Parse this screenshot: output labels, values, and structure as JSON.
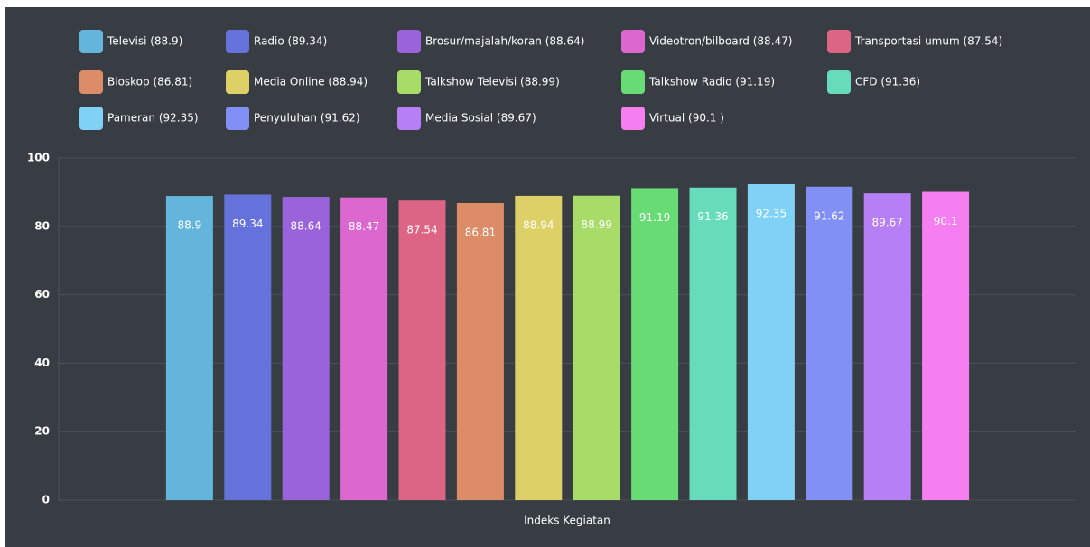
{
  "chart_data": {
    "type": "bar",
    "categories": [
      "Indeks Kegiatan"
    ],
    "series": [
      {
        "name": "Televisi (88.9)",
        "color": "#63b5dc",
        "values": [
          88.9
        ]
      },
      {
        "name": "Radio (89.34)",
        "color": "#6672dc",
        "values": [
          89.34
        ]
      },
      {
        "name": "Brosur/majalah/koran (88.64)",
        "color": "#9a63dc",
        "values": [
          88.64
        ]
      },
      {
        "name": "Videotron/bilboard (88.47)",
        "color": "#dc67cf",
        "values": [
          88.47
        ]
      },
      {
        "name": "Transportasi umum (87.54)",
        "color": "#dc6484",
        "values": [
          87.54
        ]
      },
      {
        "name": "Bioskop (86.81)",
        "color": "#dc8c67",
        "values": [
          86.81
        ]
      },
      {
        "name": "Media Online (88.94)",
        "color": "#dcd067",
        "values": [
          88.94
        ]
      },
      {
        "name": "Talkshow Televisi (88.99)",
        "color": "#a6dc67",
        "values": [
          88.99
        ]
      },
      {
        "name": "Talkshow Radio (91.19)",
        "color": "#67dc75",
        "values": [
          91.19
        ]
      },
      {
        "name": "CFD (91.36)",
        "color": "#67dcbb",
        "values": [
          91.36
        ]
      },
      {
        "name": "Pameran (92.35)",
        "color": "#7fd2f5",
        "values": [
          92.35
        ]
      },
      {
        "name": "Penyuluhan (91.62)",
        "color": "#8090f5",
        "values": [
          91.62
        ]
      },
      {
        "name": "Media Sosial (89.67)",
        "color": "#b77ff5",
        "values": [
          89.67
        ]
      },
      {
        "name": "Virtual (90.1 )",
        "color": "#f57ff0",
        "values": [
          90.1
        ]
      }
    ],
    "ylim": [
      0,
      100
    ],
    "yticks": [
      0,
      20,
      40,
      60,
      80,
      100
    ],
    "grid": true
  }
}
